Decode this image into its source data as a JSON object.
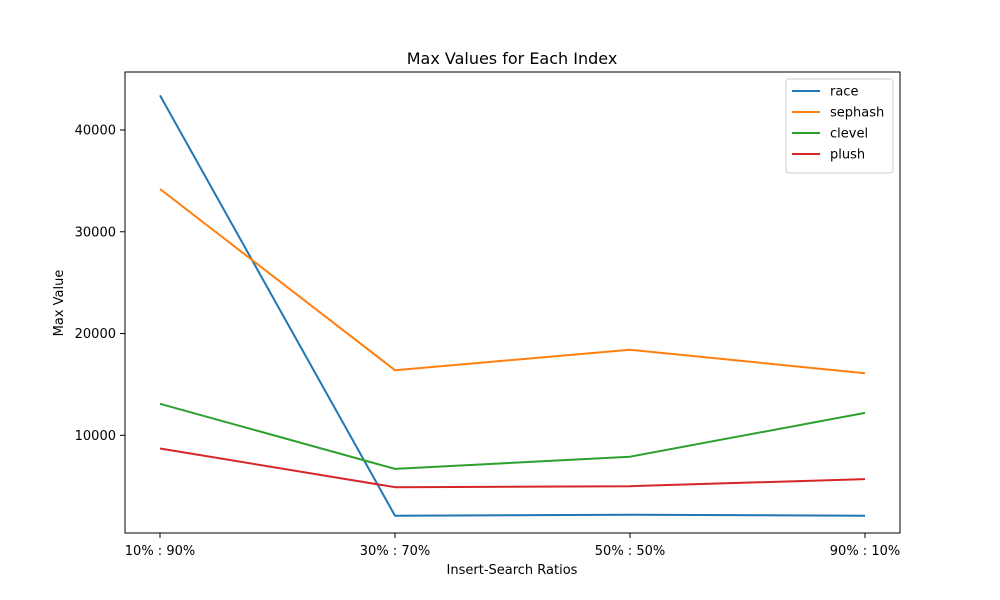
{
  "chart_data": {
    "type": "line",
    "title": "Max Values for Each Index",
    "xlabel": "Insert-Search Ratios",
    "ylabel": "Max Value",
    "categories": [
      "10% : 90%",
      "30% : 70%",
      "50% : 50%",
      "90% : 10%"
    ],
    "yticks": [
      10000,
      20000,
      30000,
      40000
    ],
    "ylim": [
      400,
      45700
    ],
    "grid": false,
    "legend_position": "top-right",
    "series": [
      {
        "name": "race",
        "color": "#1f77b4",
        "values": [
          43400,
          2100,
          2200,
          2100
        ]
      },
      {
        "name": "sephash",
        "color": "#ff7f0e",
        "values": [
          34200,
          16400,
          18400,
          16100
        ]
      },
      {
        "name": "clevel",
        "color": "#2ca02c",
        "values": [
          13100,
          6700,
          7900,
          12200
        ]
      },
      {
        "name": "plush",
        "color": "#d62728",
        "values": [
          8700,
          4900,
          5000,
          5700
        ]
      }
    ]
  }
}
